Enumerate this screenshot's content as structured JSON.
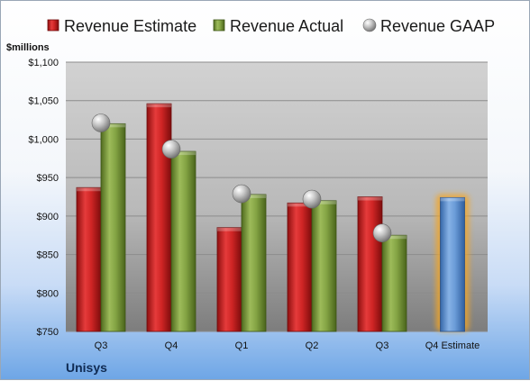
{
  "company": "Unisys",
  "chart_data": {
    "type": "bar",
    "unit_label": "$millions",
    "categories": [
      "Q3",
      "Q4",
      "Q1",
      "Q2",
      "Q3",
      "Q4 Estimate"
    ],
    "ylim": [
      750,
      1100
    ],
    "y_ticks": [
      750,
      800,
      850,
      900,
      950,
      1000,
      1050,
      1100
    ],
    "y_tick_labels": [
      "$750",
      "$800",
      "$850",
      "$900",
      "$950",
      "$1,000",
      "$1,050",
      "$1,100"
    ],
    "grid": true,
    "legend": "top",
    "series": [
      {
        "name": "Revenue Estimate",
        "kind": "bar",
        "color": "#cc1f1f",
        "values": [
          937,
          1046,
          885,
          917,
          925,
          null
        ]
      },
      {
        "name": "Revenue Actual",
        "kind": "bar",
        "color": "#7a9a3a",
        "values": [
          1020,
          984,
          928,
          920,
          875,
          null
        ]
      },
      {
        "name": "Revenue GAAP",
        "kind": "marker",
        "color": "#b0b0b0",
        "values": [
          1021,
          987,
          929,
          922,
          878,
          null
        ]
      },
      {
        "name": "Q4 Estimate",
        "kind": "bar",
        "color": "#5a8fd0",
        "values": [
          null,
          null,
          null,
          null,
          null,
          924
        ]
      }
    ]
  }
}
